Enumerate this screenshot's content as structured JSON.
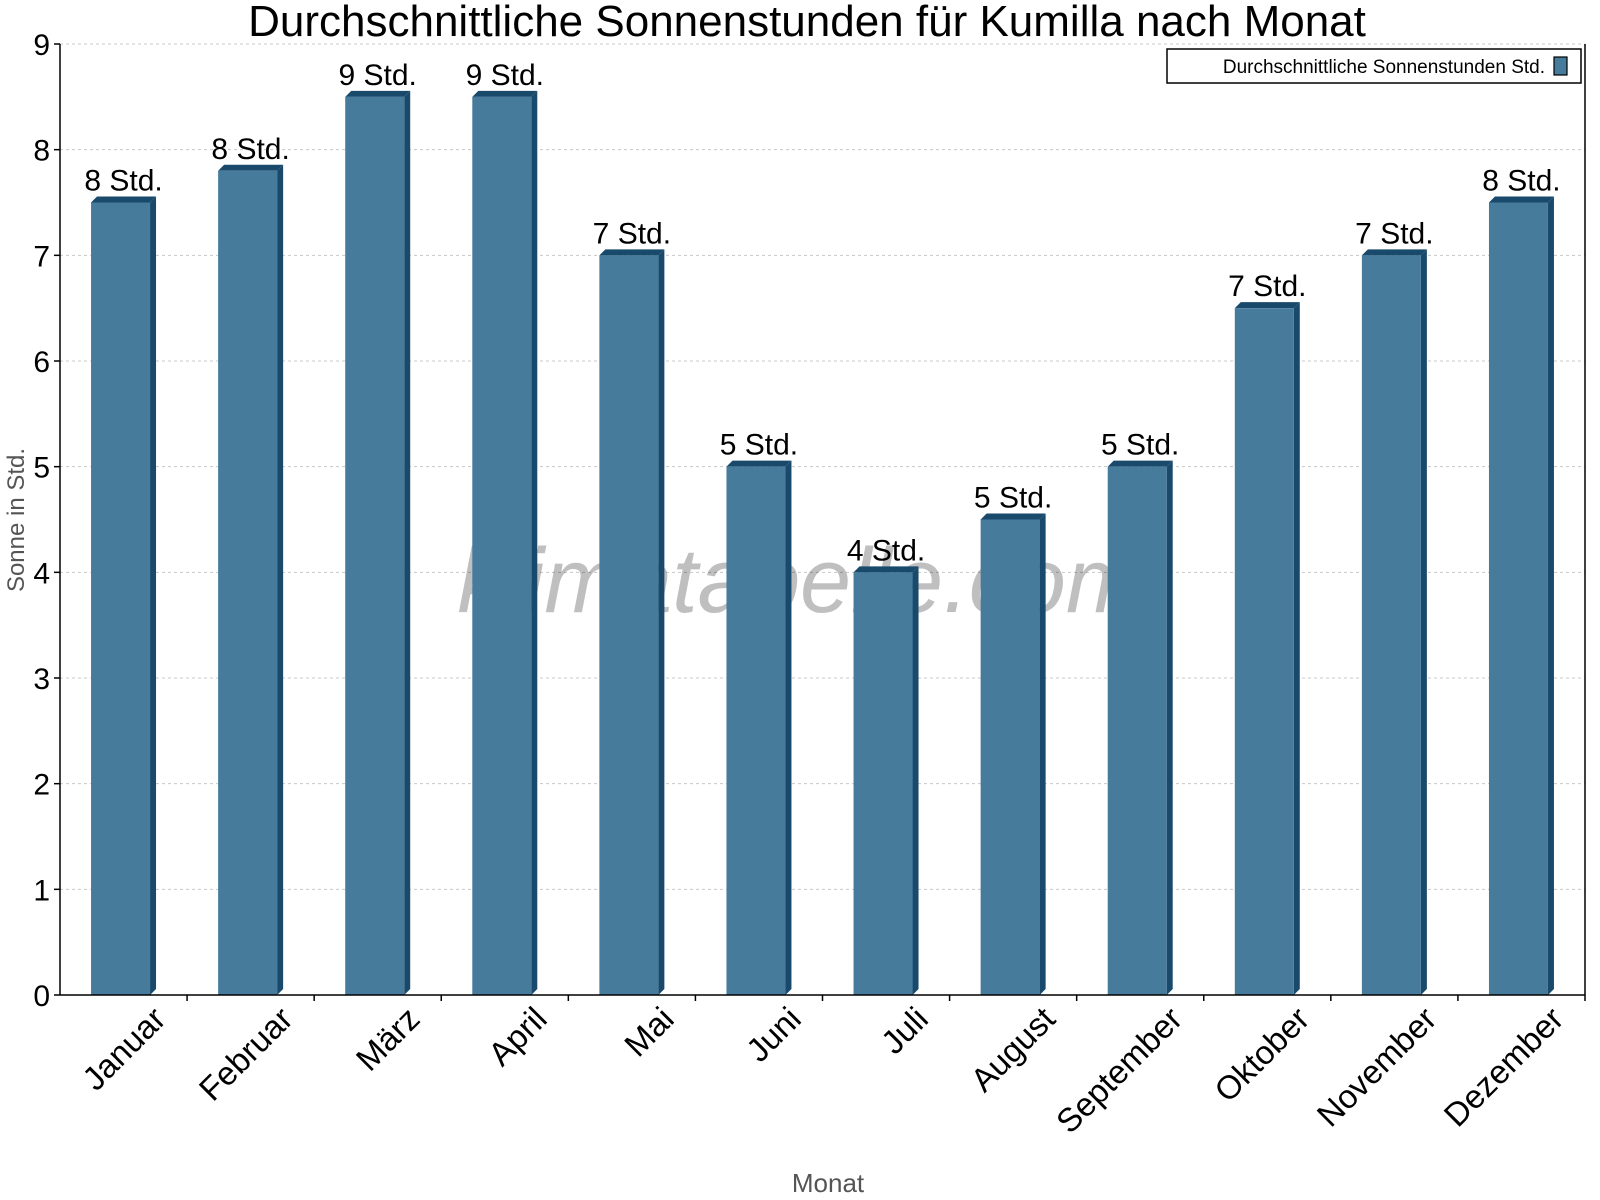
{
  "chart_data": {
    "type": "bar",
    "title": "Durchschnittliche Sonnenstunden für Kumilla nach Monat",
    "xlabel": "Monat",
    "ylabel": "Sonne in Std.",
    "ylim": [
      0,
      9
    ],
    "yticks": [
      0,
      1,
      2,
      3,
      4,
      5,
      6,
      7,
      8,
      9
    ],
    "grid": true,
    "legend_position": "top-right",
    "categories": [
      "Januar",
      "Februar",
      "März",
      "April",
      "Mai",
      "Juni",
      "Juli",
      "August",
      "September",
      "Oktober",
      "November",
      "Dezember"
    ],
    "series": [
      {
        "name": "Durchschnittliche Sonnenstunden Std.",
        "values": [
          7.5,
          7.8,
          8.5,
          8.5,
          7.0,
          5.0,
          4.0,
          4.5,
          5.0,
          6.5,
          7.0,
          7.5
        ],
        "data_labels": [
          "8 Std.",
          "8 Std.",
          "9 Std.",
          "9 Std.",
          "7 Std.",
          "5 Std.",
          "4 Std.",
          "5 Std.",
          "5 Std.",
          "7 Std.",
          "7 Std.",
          "8 Std."
        ],
        "color": "#477b9c",
        "side_color": "#1a4a6b"
      }
    ],
    "watermark": "klimatabelle.com"
  }
}
